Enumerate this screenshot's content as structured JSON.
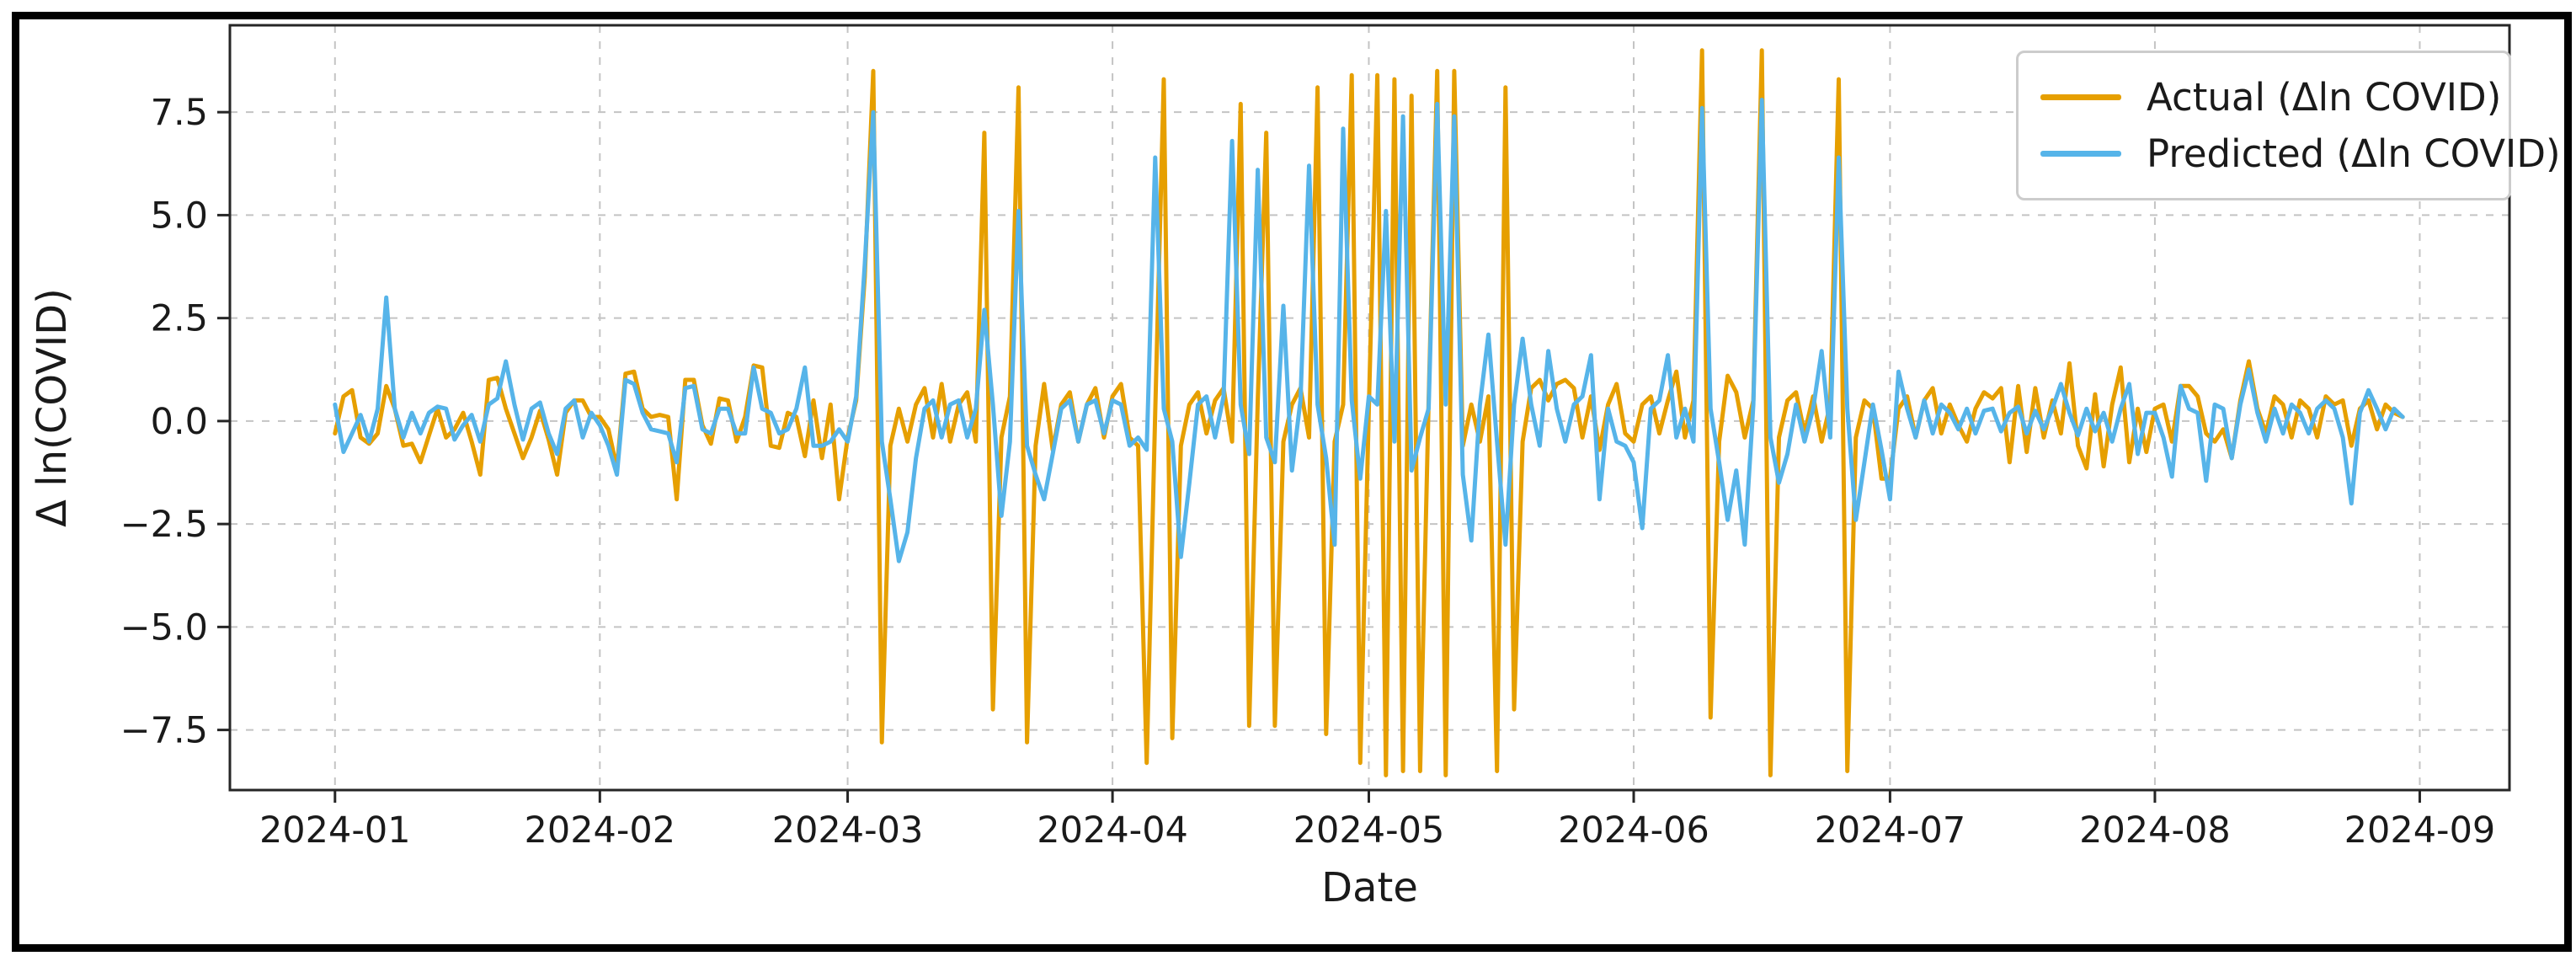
{
  "figure": {
    "background_color": "#ffffff",
    "frame_color": "#000000",
    "grid_color": "#c4c4c4",
    "axis_color": "#262626",
    "text_color": "#1a1a1a"
  },
  "legend": {
    "items": [
      {
        "label": "Actual (Δln COVID)",
        "color": "#E69F00"
      },
      {
        "label": "Predicted (Δln COVID)",
        "color": "#56B4E9"
      }
    ]
  },
  "chart_data": {
    "type": "line",
    "title": "",
    "xlabel": "Date",
    "ylabel": "Δ ln(COVID)",
    "grid": true,
    "legend_position": "upper right",
    "x_start_date": "2024-01-01",
    "x_frequency": "daily",
    "n_points": 243,
    "x_tick_labels": [
      "2024-01",
      "2024-02",
      "2024-03",
      "2024-04",
      "2024-05",
      "2024-06",
      "2024-07",
      "2024-08",
      "2024-09"
    ],
    "y_ticks": [
      -7.5,
      -5.0,
      -2.5,
      0.0,
      2.5,
      5.0,
      7.5
    ],
    "y_tick_labels": [
      "−7.5",
      "−5.0",
      "−2.5",
      "0.0",
      "2.5",
      "5.0",
      "7.5"
    ],
    "xlim_days": [
      -12.3,
      254.5
    ],
    "ylim": [
      -8.96,
      9.61
    ],
    "series": [
      {
        "name": "Actual (Δln COVID)",
        "color": "#E69F00",
        "values": [
          -0.3,
          0.6,
          0.75,
          -0.4,
          -0.55,
          -0.3,
          0.85,
          0.3,
          -0.6,
          -0.55,
          -1.0,
          -0.35,
          0.3,
          -0.4,
          -0.2,
          0.2,
          -0.5,
          -1.3,
          1.0,
          1.05,
          0.3,
          -0.3,
          -0.9,
          -0.4,
          0.25,
          -0.45,
          -1.3,
          0.2,
          0.5,
          0.5,
          0.1,
          0.1,
          -0.2,
          -1.15,
          1.15,
          1.2,
          0.3,
          0.1,
          0.15,
          0.1,
          -1.9,
          1.0,
          1.0,
          -0.1,
          -0.55,
          0.55,
          0.5,
          -0.5,
          0.1,
          1.35,
          1.3,
          -0.6,
          -0.65,
          0.2,
          0.1,
          -0.85,
          0.5,
          -0.9,
          0.4,
          -1.9,
          -0.4,
          0.5,
          3.5,
          8.5,
          -7.8,
          -0.6,
          0.3,
          -0.5,
          0.4,
          0.8,
          -0.4,
          0.9,
          -0.5,
          0.4,
          0.7,
          -0.5,
          7.0,
          -7.0,
          -0.4,
          0.6,
          8.1,
          -7.8,
          -0.6,
          0.9,
          -0.7,
          0.4,
          0.7,
          -0.5,
          0.4,
          0.8,
          -0.4,
          0.6,
          0.9,
          -0.4,
          -0.6,
          -8.3,
          0.2,
          8.3,
          -7.7,
          -0.6,
          0.4,
          0.7,
          -0.3,
          0.5,
          0.8,
          -0.5,
          7.7,
          -7.4,
          0.5,
          7.0,
          -7.4,
          -0.5,
          0.4,
          0.8,
          -0.4,
          8.1,
          -7.6,
          -0.5,
          0.4,
          8.4,
          -8.3,
          0.3,
          8.4,
          -8.6,
          8.3,
          -8.5,
          7.9,
          -8.5,
          0.5,
          8.5,
          -8.6,
          8.5,
          -0.6,
          0.4,
          -0.5,
          0.6,
          -8.5,
          8.1,
          -7.0,
          -0.5,
          0.8,
          1.0,
          0.5,
          0.9,
          1.0,
          0.8,
          -0.4,
          0.6,
          -0.7,
          0.4,
          0.9,
          -0.3,
          -0.5,
          0.4,
          0.6,
          -0.3,
          0.5,
          1.2,
          -0.4,
          0.5,
          9.0,
          -7.2,
          -0.5,
          1.1,
          0.7,
          -0.4,
          0.5,
          9.0,
          -8.6,
          -0.4,
          0.5,
          0.7,
          -0.3,
          0.6,
          -0.5,
          0.4,
          8.3,
          -8.5,
          -0.4,
          0.5,
          0.3,
          -1.4,
          -1.4,
          0.3,
          0.6,
          -0.4,
          0.5,
          0.8,
          -0.3,
          0.4,
          -0.1,
          -0.5,
          0.3,
          0.7,
          0.55,
          0.8,
          -1.0,
          0.85,
          -0.75,
          0.8,
          -0.4,
          0.5,
          -0.3,
          1.4,
          -0.6,
          -1.15,
          0.65,
          -1.1,
          0.4,
          1.3,
          -1.0,
          0.3,
          -0.75,
          0.3,
          0.4,
          -0.5,
          0.85,
          0.85,
          0.6,
          -0.3,
          -0.5,
          -0.2,
          -0.9,
          0.5,
          1.45,
          0.3,
          -0.3,
          0.6,
          0.4,
          -0.4,
          0.5,
          0.3,
          -0.4,
          0.6,
          0.4,
          0.5,
          -0.6,
          0.3,
          0.5,
          -0.2,
          0.4,
          0.2,
          0.1
        ]
      },
      {
        "name": "Predicted (Δln COVID)",
        "color": "#56B4E9",
        "values": [
          0.4,
          -0.75,
          -0.3,
          0.15,
          -0.5,
          0.3,
          3.0,
          0.3,
          -0.4,
          0.2,
          -0.3,
          0.2,
          0.35,
          0.3,
          -0.45,
          -0.1,
          0.15,
          -0.5,
          0.4,
          0.55,
          1.45,
          0.4,
          -0.45,
          0.3,
          0.45,
          -0.3,
          -0.8,
          0.3,
          0.5,
          -0.4,
          0.2,
          -0.1,
          -0.6,
          -1.3,
          1.0,
          0.9,
          0.2,
          -0.2,
          -0.25,
          -0.3,
          -1.0,
          0.8,
          0.85,
          -0.2,
          -0.3,
          0.3,
          0.3,
          -0.3,
          -0.3,
          1.3,
          0.3,
          0.2,
          -0.3,
          -0.2,
          0.3,
          1.3,
          -0.6,
          -0.6,
          -0.5,
          -0.2,
          -0.5,
          0.6,
          3.8,
          7.5,
          -0.5,
          -1.9,
          -3.4,
          -2.7,
          -0.9,
          0.3,
          0.5,
          -0.4,
          0.4,
          0.5,
          -0.4,
          0.3,
          2.7,
          0.4,
          -2.3,
          -0.5,
          5.1,
          -0.6,
          -1.3,
          -1.9,
          -0.8,
          0.3,
          0.5,
          -0.5,
          0.4,
          0.5,
          -0.3,
          0.5,
          0.4,
          -0.6,
          -0.4,
          -0.7,
          6.4,
          0.3,
          -0.5,
          -3.3,
          -1.5,
          0.4,
          0.6,
          -0.4,
          0.6,
          6.8,
          0.4,
          -0.8,
          6.1,
          -0.4,
          -1.0,
          2.8,
          -1.2,
          0.5,
          6.2,
          0.4,
          -0.9,
          -3.0,
          7.1,
          0.5,
          -1.4,
          0.6,
          0.4,
          5.1,
          -0.5,
          7.4,
          -1.2,
          -0.4,
          0.3,
          7.7,
          0.4,
          7.4,
          -1.3,
          -2.9,
          0.4,
          2.1,
          -0.5,
          -3.0,
          0.4,
          2.0,
          0.4,
          -0.6,
          1.7,
          0.3,
          -0.5,
          0.4,
          0.6,
          1.6,
          -1.9,
          0.3,
          -0.5,
          -0.6,
          -1.0,
          -2.6,
          0.3,
          0.5,
          1.6,
          -0.4,
          0.3,
          -0.5,
          7.6,
          0.3,
          -1.0,
          -2.4,
          -1.2,
          -3.0,
          0.4,
          7.8,
          -0.4,
          -1.5,
          -0.8,
          0.4,
          -0.5,
          0.3,
          1.7,
          -0.4,
          6.4,
          0.3,
          -2.4,
          -1.0,
          0.4,
          -0.7,
          -1.9,
          1.2,
          0.3,
          -0.4,
          0.5,
          -0.3,
          0.4,
          0.2,
          -0.2,
          0.3,
          -0.3,
          0.25,
          0.3,
          -0.25,
          0.2,
          0.35,
          -0.3,
          0.25,
          -0.2,
          0.3,
          0.9,
          0.2,
          -0.35,
          0.3,
          -0.25,
          0.2,
          -0.5,
          0.3,
          0.9,
          -0.8,
          0.2,
          0.2,
          -0.4,
          -1.35,
          0.85,
          0.3,
          0.2,
          -1.45,
          0.4,
          0.3,
          -0.9,
          0.4,
          1.25,
          0.2,
          -0.5,
          0.3,
          -0.3,
          0.4,
          0.2,
          -0.3,
          0.3,
          0.5,
          0.3,
          -0.4,
          -2.0,
          0.2,
          0.75,
          0.3,
          -0.2,
          0.3,
          0.1
        ]
      }
    ]
  }
}
